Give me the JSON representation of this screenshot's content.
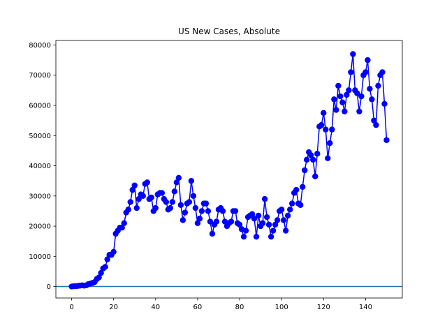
{
  "chart_data": {
    "type": "line",
    "title": "US New Cases, Absolute",
    "xlabel": "",
    "ylabel": "",
    "xlim": [
      -7.5,
      157.5
    ],
    "ylim": [
      -3800,
      81500
    ],
    "xticks": [
      0,
      20,
      40,
      60,
      80,
      100,
      120,
      140
    ],
    "yticks": [
      0,
      10000,
      20000,
      30000,
      40000,
      50000,
      60000,
      70000,
      80000
    ],
    "grid": false,
    "legend": "none",
    "colors": {
      "series": "#0000ff",
      "marker": "#0000ff",
      "baseline": "#1f77b4",
      "axes": "#000000"
    },
    "baseline_y": 0,
    "series": [
      {
        "marker": "circle",
        "x": [
          0,
          1,
          2,
          3,
          4,
          5,
          6,
          7,
          8,
          9,
          10,
          11,
          12,
          13,
          14,
          15,
          16,
          17,
          18,
          19,
          20,
          21,
          22,
          23,
          24,
          25,
          26,
          27,
          28,
          29,
          30,
          31,
          32,
          33,
          34,
          35,
          36,
          37,
          38,
          39,
          40,
          41,
          42,
          43,
          44,
          45,
          46,
          47,
          48,
          49,
          50,
          51,
          52,
          53,
          54,
          55,
          56,
          57,
          58,
          59,
          60,
          61,
          62,
          63,
          64,
          65,
          66,
          67,
          68,
          69,
          70,
          71,
          72,
          73,
          74,
          75,
          76,
          77,
          78,
          79,
          80,
          81,
          82,
          83,
          84,
          85,
          86,
          87,
          88,
          89,
          90,
          91,
          92,
          93,
          94,
          95,
          96,
          97,
          98,
          99,
          100,
          101,
          102,
          103,
          104,
          105,
          106,
          107,
          108,
          109,
          110,
          111,
          112,
          113,
          114,
          115,
          116,
          117,
          118,
          119,
          120,
          121,
          122,
          123,
          124,
          125,
          126,
          127,
          128,
          129,
          130,
          131,
          132,
          133,
          134,
          135,
          136,
          137,
          138,
          139,
          140,
          141,
          142,
          143,
          144,
          145,
          146,
          147,
          148,
          149,
          150
        ],
        "y": [
          0,
          100,
          100,
          200,
          300,
          400,
          300,
          400,
          800,
          1000,
          1200,
          1500,
          2500,
          3000,
          4500,
          6000,
          6500,
          9000,
          10500,
          10500,
          11500,
          17500,
          18500,
          19500,
          19500,
          21000,
          24500,
          25500,
          28000,
          32000,
          33500,
          26000,
          29000,
          30500,
          30000,
          34000,
          34500,
          29000,
          29500,
          25000,
          26000,
          30500,
          31000,
          31000,
          29000,
          28000,
          25500,
          26000,
          28000,
          31500,
          34500,
          36000,
          27000,
          22000,
          24500,
          27500,
          28000,
          35000,
          30000,
          26000,
          21000,
          22500,
          25000,
          27500,
          27500,
          25000,
          21500,
          17500,
          20500,
          21500,
          25500,
          26000,
          25000,
          21500,
          20000,
          21000,
          21500,
          25000,
          25000,
          21000,
          20500,
          19000,
          16500,
          18500,
          23000,
          23500,
          24000,
          22500,
          16500,
          23500,
          20000,
          21000,
          29000,
          23000,
          20500,
          16500,
          18500,
          20500,
          22000,
          25000,
          25500,
          22000,
          18500,
          23500,
          25500,
          27500,
          31000,
          32000,
          27500,
          27000,
          33000,
          38500,
          42000,
          44500,
          43500,
          42000,
          36500,
          44000,
          53000,
          53500,
          57500,
          52000,
          42500,
          47500,
          52000,
          62000,
          58500,
          66500,
          63000,
          61000,
          58000,
          63500,
          65000,
          71000,
          77000,
          65000,
          64000,
          58000,
          63000,
          70000,
          71000,
          75000,
          65500,
          62000,
          55000,
          53500,
          66500,
          70000,
          71000,
          60500,
          48500
        ]
      }
    ]
  }
}
